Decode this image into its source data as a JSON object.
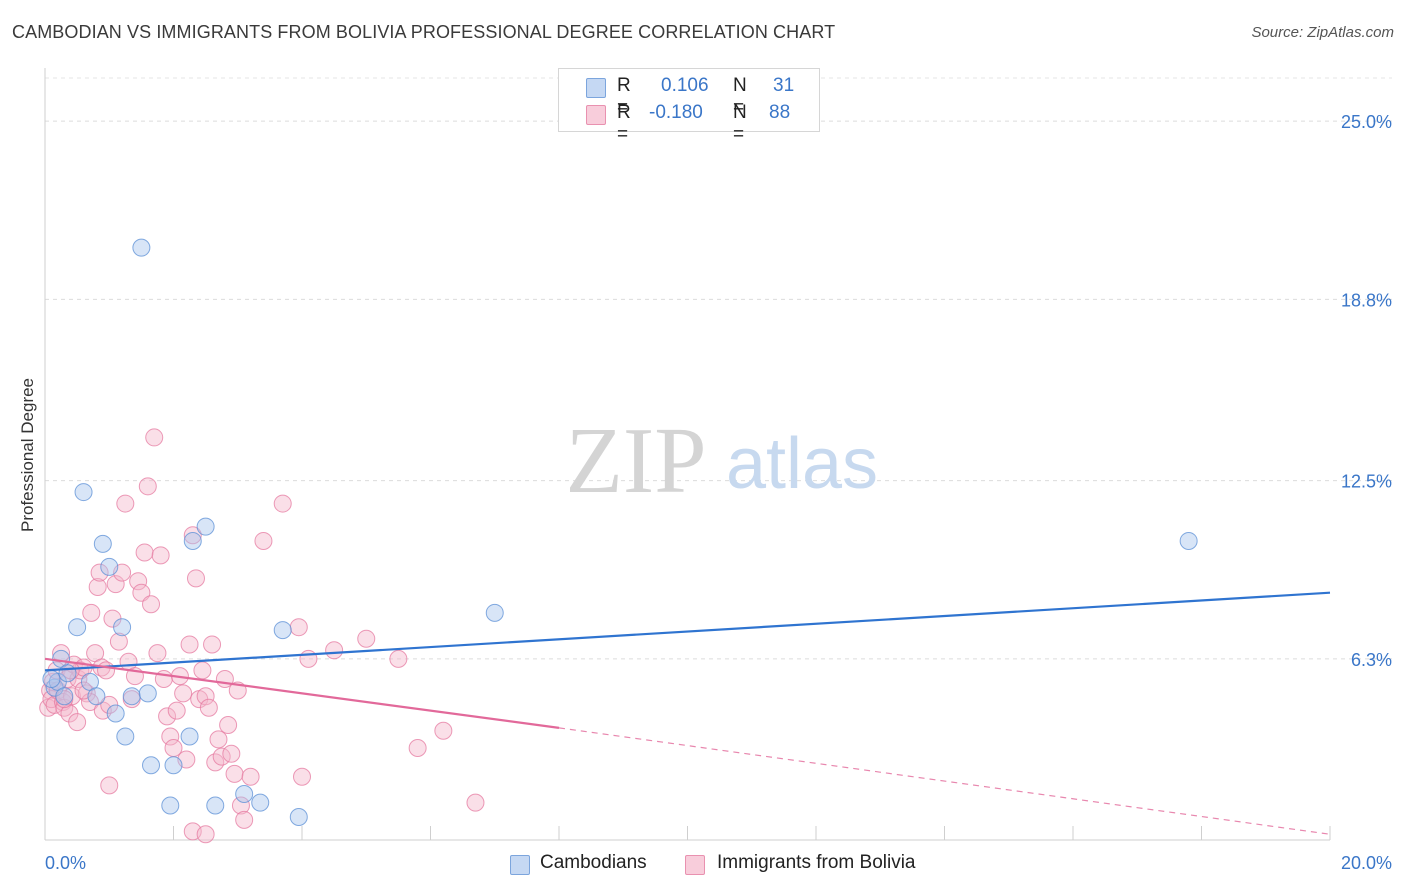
{
  "title": "CAMBODIAN VS IMMIGRANTS FROM BOLIVIA PROFESSIONAL DEGREE CORRELATION CHART",
  "source": "Source: ZipAtlas.com",
  "watermark": {
    "zip": "ZIP",
    "atlas": "atlas"
  },
  "colors": {
    "blue": "#5b8fd6",
    "blue_fill": "#a9c6ee",
    "pink": "#e57aa0",
    "pink_fill": "#f4b9cd",
    "blue_line": "#2f74d0",
    "pink_line": "#e2699a",
    "tick_text": "#3a76c8"
  },
  "legend": {
    "rows": [
      {
        "r_label": "R =",
        "r_value": "0.106",
        "n_label": "N =",
        "n_value": "31"
      },
      {
        "r_label": "R =",
        "r_value": "-0.180",
        "n_label": "N =",
        "n_value": "88"
      }
    ]
  },
  "bottom_legend": [
    "Cambodians",
    "Immigrants from Bolivia"
  ],
  "chart_data": {
    "type": "scatter",
    "title": "CAMBODIAN VS IMMIGRANTS FROM BOLIVIA PROFESSIONAL DEGREE CORRELATION CHART",
    "xlabel": "",
    "ylabel": "Professional Degree",
    "xlim": [
      0,
      20
    ],
    "ylim": [
      0,
      26.5
    ],
    "x_tick_labels": [
      "0.0%",
      "20.0%"
    ],
    "y_ticks": [
      6.3,
      12.5,
      18.8,
      25.0
    ],
    "y_tick_labels": [
      "6.3%",
      "12.5%",
      "18.8%",
      "25.0%"
    ],
    "series": [
      {
        "name": "Cambodians",
        "r": 0.106,
        "n": 31,
        "trend": {
          "x0": 0,
          "y0": 5.9,
          "x1": 20,
          "y1": 8.6
        },
        "points": [
          [
            0.15,
            5.3
          ],
          [
            0.2,
            5.5
          ],
          [
            0.25,
            6.3
          ],
          [
            0.3,
            5.0
          ],
          [
            0.35,
            5.8
          ],
          [
            0.5,
            7.4
          ],
          [
            0.6,
            12.1
          ],
          [
            0.7,
            5.5
          ],
          [
            0.8,
            5.0
          ],
          [
            0.9,
            10.3
          ],
          [
            1.0,
            9.5
          ],
          [
            1.1,
            4.4
          ],
          [
            1.2,
            7.4
          ],
          [
            1.25,
            3.6
          ],
          [
            1.35,
            5.0
          ],
          [
            1.5,
            20.6
          ],
          [
            1.6,
            5.1
          ],
          [
            1.65,
            2.6
          ],
          [
            1.95,
            1.2
          ],
          [
            2.0,
            2.6
          ],
          [
            2.25,
            3.6
          ],
          [
            2.3,
            10.4
          ],
          [
            2.5,
            10.9
          ],
          [
            2.65,
            1.2
          ],
          [
            3.1,
            1.6
          ],
          [
            3.35,
            1.3
          ],
          [
            3.7,
            7.3
          ],
          [
            3.95,
            0.8
          ],
          [
            7.0,
            7.9
          ],
          [
            17.8,
            10.4
          ],
          [
            0.1,
            5.6
          ]
        ]
      },
      {
        "name": "Immigrants from Bolivia",
        "r": -0.18,
        "n": 88,
        "trend": {
          "x0": 0,
          "y0": 6.3,
          "x1": 8.0,
          "y1": 3.9,
          "x1_dashed": 20,
          "y1_dashed": 0.2
        },
        "points": [
          [
            0.05,
            4.6
          ],
          [
            0.08,
            5.2
          ],
          [
            0.1,
            4.9
          ],
          [
            0.12,
            5.5
          ],
          [
            0.15,
            4.7
          ],
          [
            0.18,
            5.9
          ],
          [
            0.2,
            5.2
          ],
          [
            0.25,
            6.5
          ],
          [
            0.28,
            4.8
          ],
          [
            0.3,
            4.6
          ],
          [
            0.35,
            5.6
          ],
          [
            0.38,
            4.4
          ],
          [
            0.42,
            5.0
          ],
          [
            0.45,
            6.1
          ],
          [
            0.5,
            4.1
          ],
          [
            0.52,
            5.6
          ],
          [
            0.55,
            5.9
          ],
          [
            0.6,
            6.0
          ],
          [
            0.65,
            5.1
          ],
          [
            0.7,
            4.8
          ],
          [
            0.72,
            7.9
          ],
          [
            0.78,
            6.5
          ],
          [
            0.82,
            8.8
          ],
          [
            0.85,
            9.3
          ],
          [
            0.88,
            6.0
          ],
          [
            0.9,
            4.5
          ],
          [
            0.95,
            5.9
          ],
          [
            1.0,
            4.7
          ],
          [
            1.05,
            7.7
          ],
          [
            1.1,
            8.9
          ],
          [
            1.15,
            6.9
          ],
          [
            1.2,
            9.3
          ],
          [
            1.25,
            11.7
          ],
          [
            1.3,
            6.2
          ],
          [
            1.35,
            4.9
          ],
          [
            1.4,
            5.7
          ],
          [
            1.45,
            9.0
          ],
          [
            1.5,
            8.6
          ],
          [
            1.55,
            10.0
          ],
          [
            1.6,
            12.3
          ],
          [
            1.65,
            8.2
          ],
          [
            1.7,
            14.0
          ],
          [
            1.75,
            6.5
          ],
          [
            1.8,
            9.9
          ],
          [
            1.85,
            5.6
          ],
          [
            1.9,
            4.3
          ],
          [
            1.95,
            3.6
          ],
          [
            2.0,
            3.2
          ],
          [
            2.05,
            4.5
          ],
          [
            2.1,
            5.7
          ],
          [
            2.15,
            5.1
          ],
          [
            2.2,
            2.8
          ],
          [
            2.25,
            6.8
          ],
          [
            2.3,
            10.6
          ],
          [
            2.35,
            9.1
          ],
          [
            2.4,
            4.9
          ],
          [
            2.45,
            5.9
          ],
          [
            2.5,
            5.0
          ],
          [
            2.55,
            4.6
          ],
          [
            2.6,
            6.8
          ],
          [
            2.65,
            2.7
          ],
          [
            2.7,
            3.5
          ],
          [
            2.75,
            2.9
          ],
          [
            2.8,
            5.6
          ],
          [
            2.85,
            4.0
          ],
          [
            2.9,
            3.0
          ],
          [
            2.95,
            2.3
          ],
          [
            3.0,
            5.2
          ],
          [
            3.05,
            1.2
          ],
          [
            3.1,
            0.7
          ],
          [
            3.2,
            2.2
          ],
          [
            3.4,
            10.4
          ],
          [
            3.7,
            11.7
          ],
          [
            3.95,
            7.4
          ],
          [
            4.0,
            2.2
          ],
          [
            4.1,
            6.3
          ],
          [
            4.5,
            6.6
          ],
          [
            5.0,
            7.0
          ],
          [
            5.5,
            6.3
          ],
          [
            5.8,
            3.2
          ],
          [
            6.2,
            3.8
          ],
          [
            6.7,
            1.3
          ],
          [
            2.3,
            0.3
          ],
          [
            2.5,
            0.2
          ],
          [
            1.0,
            1.9
          ],
          [
            0.4,
            5.9
          ],
          [
            0.3,
            4.9
          ],
          [
            0.6,
            5.2
          ]
        ]
      }
    ]
  }
}
